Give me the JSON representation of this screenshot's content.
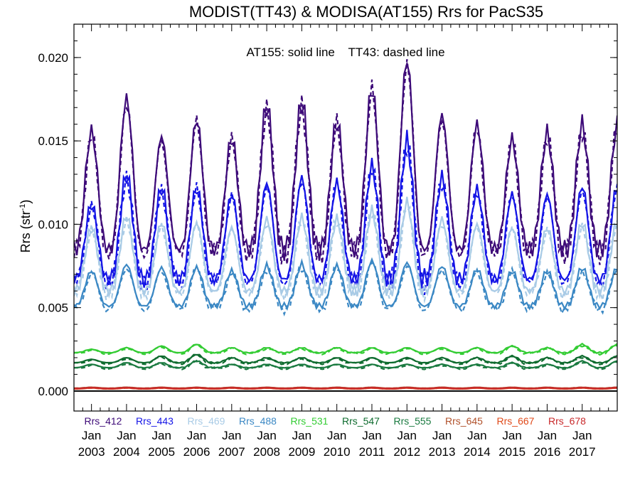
{
  "chart_data": {
    "type": "line",
    "title": "MODIST(TT43) & MODISA(AT155)  Rrs for PacS35",
    "annotation": "AT155: solid line    TT43: dashed line",
    "ylabel_main": "Rrs (str",
    "ylabel_sup": "-1",
    "ylabel_close": ")",
    "xlim": [
      2002.5,
      2018.0
    ],
    "ylim": [
      -0.0012,
      0.022
    ],
    "y_ticks": [
      {
        "value": 0.0,
        "label": "0.000"
      },
      {
        "value": 0.005,
        "label": "0.005"
      },
      {
        "value": 0.01,
        "label": "0.010"
      },
      {
        "value": 0.015,
        "label": "0.015"
      },
      {
        "value": 0.02,
        "label": "0.020"
      }
    ],
    "x_ticks": [
      {
        "value": 2003,
        "month": "Jan",
        "year": "2003"
      },
      {
        "value": 2004,
        "month": "Jan",
        "year": "2004"
      },
      {
        "value": 2005,
        "month": "Jan",
        "year": "2005"
      },
      {
        "value": 2006,
        "month": "Jan",
        "year": "2006"
      },
      {
        "value": 2007,
        "month": "Jan",
        "year": "2007"
      },
      {
        "value": 2008,
        "month": "Jan",
        "year": "2008"
      },
      {
        "value": 2009,
        "month": "Jan",
        "year": "2009"
      },
      {
        "value": 2010,
        "month": "Jan",
        "year": "2010"
      },
      {
        "value": 2011,
        "month": "Jan",
        "year": "2011"
      },
      {
        "value": 2012,
        "month": "Jan",
        "year": "2012"
      },
      {
        "value": 2013,
        "month": "Jan",
        "year": "2013"
      },
      {
        "value": 2014,
        "month": "Jan",
        "year": "2014"
      },
      {
        "value": 2015,
        "month": "Jan",
        "year": "2015"
      },
      {
        "value": 2016,
        "month": "Jan",
        "year": "2016"
      },
      {
        "value": 2017,
        "month": "Jan",
        "year": "2017"
      }
    ],
    "peak_years": [
      2003,
      2004,
      2005,
      2006,
      2007,
      2008,
      2009,
      2010,
      2011,
      2012,
      2013,
      2014,
      2015,
      2016,
      2017
    ],
    "grid": false,
    "legend_position": "bottom-inside",
    "series": [
      {
        "name": "Rrs_412",
        "color": "#3d0a78",
        "base": 0.0085,
        "peaks": [
          0.0156,
          0.0176,
          0.0153,
          0.0163,
          0.0152,
          0.0172,
          0.0174,
          0.0162,
          0.0182,
          0.0199,
          0.0166,
          0.016,
          0.0151,
          0.0155,
          0.016
        ],
        "dashed_offset": -0.0004
      },
      {
        "name": "Rrs_443",
        "color": "#1414e6",
        "base": 0.0067,
        "peaks": [
          0.0112,
          0.013,
          0.0122,
          0.0122,
          0.0118,
          0.0125,
          0.0128,
          0.0125,
          0.0135,
          0.015,
          0.0128,
          0.0121,
          0.0118,
          0.0118,
          0.0123
        ],
        "dashed_offset": -0.0003
      },
      {
        "name": "Rrs_469",
        "color": "#a9cbe6",
        "base": 0.006,
        "peaks": [
          0.0098,
          0.0105,
          0.0101,
          0.0101,
          0.0098,
          0.0103,
          0.0104,
          0.0103,
          0.0108,
          0.0113,
          0.0103,
          0.01,
          0.0098,
          0.0098,
          0.0101
        ],
        "dashed_offset": -0.0003
      },
      {
        "name": "Rrs_488",
        "color": "#3b88c4",
        "base": 0.0051,
        "peaks": [
          0.0072,
          0.0076,
          0.0074,
          0.0074,
          0.0072,
          0.0075,
          0.0076,
          0.0075,
          0.0078,
          0.0077,
          0.0075,
          0.0073,
          0.0072,
          0.0072,
          0.0074
        ],
        "dashed_offset": -0.0003
      },
      {
        "name": "Rrs_531",
        "color": "#33cc33",
        "base": 0.0023,
        "peaks": [
          0.0025,
          0.0026,
          0.0027,
          0.0028,
          0.0026,
          0.0026,
          0.0026,
          0.0026,
          0.0026,
          0.0026,
          0.0026,
          0.0026,
          0.0027,
          0.0026,
          0.0028
        ],
        "dashed_offset": -0.0001
      },
      {
        "name": "Rrs_547",
        "color": "#0e6b2e",
        "base": 0.0017,
        "peaks": [
          0.0019,
          0.002,
          0.0021,
          0.0022,
          0.002,
          0.002,
          0.002,
          0.002,
          0.002,
          0.002,
          0.002,
          0.002,
          0.0021,
          0.002,
          0.0021
        ],
        "dashed_offset": -0.0001
      },
      {
        "name": "Rrs_555",
        "color": "#1a7a40",
        "base": 0.0014,
        "peaks": [
          0.0016,
          0.0017,
          0.0017,
          0.0018,
          0.0016,
          0.0016,
          0.0016,
          0.0016,
          0.0016,
          0.0016,
          0.0016,
          0.0016,
          0.0017,
          0.0016,
          0.0018
        ],
        "dashed_offset": -0.0001
      },
      {
        "name": "Rrs_645",
        "color": "#b0502a",
        "base": 0.00017,
        "peaks": [
          0.00022,
          0.00022,
          0.00022,
          0.00022,
          0.00022,
          0.00022,
          0.00022,
          0.00022,
          0.00022,
          0.00022,
          0.00022,
          0.00022,
          0.00022,
          0.00022,
          0.00022
        ],
        "dashed_offset": 0.0
      },
      {
        "name": "Rrs_667",
        "color": "#e04a1a",
        "base": 0.00013,
        "peaks": [
          0.00018,
          0.00018,
          0.00018,
          0.00018,
          0.00018,
          0.00018,
          0.00018,
          0.00018,
          0.00018,
          0.00018,
          0.00018,
          0.00018,
          0.00018,
          0.00018,
          0.00018
        ],
        "dashed_offset": 0.0
      },
      {
        "name": "Rrs_678",
        "color": "#c8282a",
        "base": 0.00015,
        "peaks": [
          0.0002,
          0.0002,
          0.0002,
          0.0002,
          0.0002,
          0.0002,
          0.0002,
          0.0002,
          0.0002,
          0.0002,
          0.0002,
          0.0002,
          0.0002,
          0.0002,
          0.0002
        ],
        "dashed_offset": 0.0
      }
    ]
  }
}
